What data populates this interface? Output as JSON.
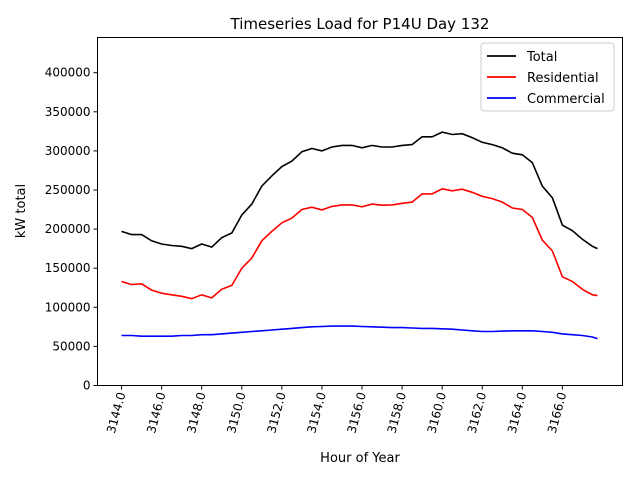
{
  "chart_data": {
    "type": "line",
    "title": "Timeseries Load for P14U   Day 132",
    "xlabel": "Hour of Year",
    "ylabel": "kW total",
    "ylim": [
      0,
      445000
    ],
    "xlim": [
      3142.8,
      3169.0
    ],
    "yticks": [
      0,
      50000,
      100000,
      150000,
      200000,
      250000,
      300000,
      350000,
      400000
    ],
    "xticks": [
      3144,
      3146,
      3148,
      3150,
      3152,
      3154,
      3156,
      3158,
      3160,
      3162,
      3164,
      3166
    ],
    "xtick_labels": [
      "3144.0",
      "3146.0",
      "3148.0",
      "3150.0",
      "3152.0",
      "3154.0",
      "3156.0",
      "3158.0",
      "3160.0",
      "3162.0",
      "3164.0",
      "3166.0"
    ],
    "legend_position": "top-right",
    "x": [
      3144,
      3144.5,
      3145,
      3145.5,
      3146,
      3146.5,
      3147,
      3147.5,
      3148,
      3148.5,
      3149,
      3149.5,
      3150,
      3150.5,
      3151,
      3151.5,
      3152,
      3152.5,
      3153,
      3153.5,
      3154,
      3154.5,
      3155,
      3155.5,
      3156,
      3156.5,
      3157,
      3157.5,
      3158,
      3158.5,
      3159,
      3159.5,
      3160,
      3160.5,
      3161,
      3161.5,
      3162,
      3162.5,
      3163,
      3163.5,
      3164,
      3164.5,
      3165,
      3165.5,
      3166,
      3166.5,
      3167,
      3167.5,
      3167.75
    ],
    "series": [
      {
        "name": "Total",
        "color": "#000000",
        "values": [
          197000,
          193000,
          193000,
          185000,
          181000,
          179000,
          178000,
          175000,
          181000,
          177000,
          189000,
          195000,
          218000,
          232000,
          255000,
          268000,
          280000,
          287000,
          299000,
          303000,
          300000,
          305000,
          307000,
          307000,
          304000,
          307000,
          305000,
          305000,
          307000,
          308000,
          318000,
          318000,
          324000,
          321000,
          322000,
          317000,
          311000,
          308000,
          304000,
          297000,
          295000,
          285000,
          255000,
          240000,
          205000,
          198000,
          187000,
          178000,
          175000
        ]
      },
      {
        "name": "Residential",
        "color": "#ff0000",
        "values": [
          133000,
          129000,
          130000,
          122000,
          118000,
          116000,
          114000,
          111000,
          116000,
          112000,
          123000,
          128000,
          150000,
          163000,
          185000,
          197000,
          208000,
          214000,
          225000,
          228000,
          224500,
          229000,
          231000,
          231000,
          228500,
          232000,
          230500,
          231000,
          233000,
          234500,
          245000,
          245000,
          251500,
          249000,
          251000,
          247000,
          242000,
          239000,
          234500,
          227000,
          225000,
          215000,
          186000,
          172000,
          139000,
          133000,
          123000,
          116000,
          115000
        ]
      },
      {
        "name": "Commercial",
        "color": "#0000ff",
        "values": [
          64000,
          64000,
          63000,
          63000,
          63000,
          63000,
          64000,
          64000,
          65000,
          65000,
          66000,
          67000,
          68000,
          69000,
          70000,
          71000,
          72000,
          73000,
          74000,
          75000,
          75500,
          76000,
          76000,
          76000,
          75500,
          75000,
          74500,
          74000,
          74000,
          73500,
          73000,
          73000,
          72500,
          72000,
          71000,
          70000,
          69000,
          69000,
          69500,
          70000,
          70000,
          70000,
          69000,
          68000,
          66000,
          65000,
          64000,
          62000,
          60000
        ]
      }
    ]
  }
}
